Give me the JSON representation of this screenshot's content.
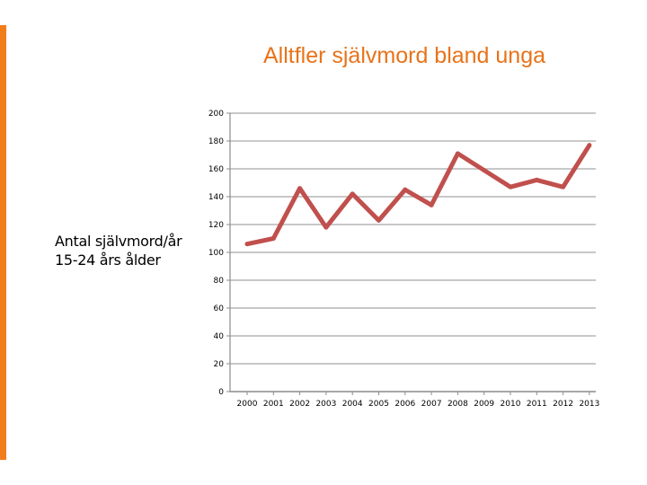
{
  "slide": {
    "title": "Alltfler självmord bland unga",
    "side_label_line1": "Antal självmord/år",
    "side_label_line2": "15-24 års ålder",
    "accent_color": "#f07d1a",
    "title_color": "#e8731a"
  },
  "chart_data": {
    "type": "line",
    "title": "",
    "xlabel": "",
    "ylabel": "",
    "ylim": [
      0,
      200
    ],
    "yticks": [
      0,
      20,
      40,
      60,
      80,
      100,
      120,
      140,
      160,
      180,
      200
    ],
    "categories": [
      "2000",
      "2001",
      "2002",
      "2003",
      "2004",
      "2005",
      "2006",
      "2007",
      "2008",
      "2009",
      "2010",
      "2011",
      "2012",
      "2013"
    ],
    "series": [
      {
        "color": "#c0504d",
        "values": [
          106,
          110,
          146,
          118,
          142,
          123,
          145,
          134,
          171,
          159,
          147,
          152,
          147,
          177
        ]
      }
    ],
    "grid": true,
    "legend": "none"
  }
}
